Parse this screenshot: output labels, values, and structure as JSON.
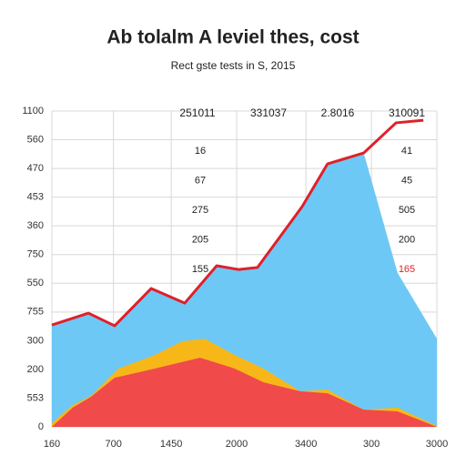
{
  "chart_data": {
    "type": "area",
    "title": "Ab tolalm A leviel thes, cost",
    "subtitle": "Rect gste tests in S, 2015",
    "xlim": [
      0,
      100
    ],
    "xticks": [
      {
        "value": 0,
        "label": "160"
      },
      {
        "value": 16,
        "label": "700"
      },
      {
        "value": 31,
        "label": "1450"
      },
      {
        "value": 48,
        "label": "2000"
      },
      {
        "value": 66,
        "label": "3400"
      },
      {
        "value": 83,
        "label": "300"
      },
      {
        "value": 100,
        "label": "3000"
      }
    ],
    "ylim": [
      0,
      1100
    ],
    "yticks": [
      0,
      {
        "value": 100,
        "label": "553"
      },
      {
        "value": 200,
        "label": "200"
      },
      {
        "value": 300,
        "label": "300"
      },
      {
        "value": 400,
        "label": "755"
      },
      {
        "value": 500,
        "label": "550"
      },
      {
        "value": 600,
        "label": "750"
      },
      {
        "value": 700,
        "label": "360"
      },
      {
        "value": 800,
        "label": "453"
      },
      {
        "value": 900,
        "label": "470"
      },
      {
        "value": 1000,
        "label": "560"
      },
      1100
    ],
    "grid": true,
    "series": [
      {
        "color": "#6ec8f5",
        "x": [
          0,
          9.5,
          16.3,
          25.8,
          34.5,
          42.8,
          48.5,
          53.4,
          65,
          71.6,
          81,
          89.8,
          100
        ],
        "values": [
          355,
          396,
          352,
          482,
          431,
          561,
          548,
          555,
          767,
          916,
          954,
          536,
          307
        ]
      },
      {
        "color": "#f8b719",
        "x": [
          0,
          5.4,
          10.2,
          17.3,
          26.7,
          33.8,
          39.7,
          47.5,
          55,
          64.5,
          71.6,
          81,
          89.8,
          100
        ],
        "values": [
          13,
          76,
          108,
          203,
          250,
          298,
          307,
          250,
          203,
          124,
          130,
          60,
          67,
          3
        ]
      },
      {
        "color": "#f04a4a",
        "x": [
          0,
          5.4,
          10.2,
          16.3,
          26.7,
          38.5,
          47.5,
          55,
          64.5,
          71.6,
          81,
          89.8,
          100
        ],
        "values": [
          0,
          67,
          105,
          171,
          203,
          241,
          203,
          155,
          124,
          117,
          60,
          54,
          0
        ]
      },
      {
        "color": "#e0202a",
        "line": true,
        "x": [
          0,
          9.5,
          16.3,
          25.8,
          34.5,
          42.8,
          48.5,
          53.4,
          65,
          71.6,
          81,
          89.4,
          96.5
        ],
        "values": [
          355,
          396,
          352,
          482,
          431,
          561,
          548,
          555,
          767,
          916,
          954,
          1059,
          1068
        ]
      }
    ],
    "column_labels": [
      "251011",
      "331037",
      "2.8016",
      "310091"
    ],
    "annotation_rows": [
      [
        "16",
        "41"
      ],
      [
        "67",
        "45"
      ],
      [
        "275",
        "505"
      ],
      [
        "205",
        "200"
      ],
      [
        "155",
        "165"
      ]
    ]
  }
}
